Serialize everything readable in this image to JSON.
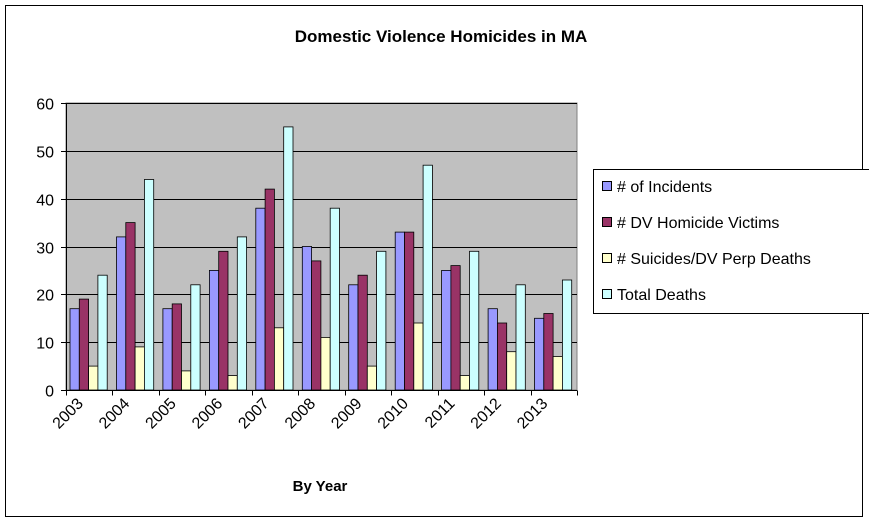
{
  "chart_data": {
    "type": "bar",
    "title": "Domestic Violence Homicides in MA",
    "xlabel": "By Year",
    "ylabel": "",
    "ylim": [
      0,
      60
    ],
    "yticks": [
      0,
      10,
      20,
      30,
      40,
      50,
      60
    ],
    "grid": true,
    "legend_position": "right",
    "categories": [
      "2003",
      "2004",
      "2005",
      "2006",
      "2007",
      "2008",
      "2009",
      "2010",
      "2011",
      "2012",
      "2013"
    ],
    "series": [
      {
        "name": "# of Incidents",
        "color": "#9999ff",
        "values": [
          17,
          32,
          17,
          25,
          38,
          30,
          22,
          33,
          25,
          17,
          15
        ]
      },
      {
        "name": "# DV Homicide Victims",
        "color": "#993366",
        "values": [
          19,
          35,
          18,
          29,
          42,
          27,
          24,
          33,
          26,
          14,
          16
        ]
      },
      {
        "name": "# Suicides/DV Perp Deaths",
        "color": "#ffffcc",
        "values": [
          5,
          9,
          4,
          3,
          13,
          11,
          5,
          14,
          3,
          8,
          7
        ]
      },
      {
        "name": "Total Deaths",
        "color": "#ccffff",
        "values": [
          24,
          44,
          22,
          32,
          55,
          38,
          29,
          47,
          29,
          22,
          23
        ]
      }
    ],
    "plot_background": "#c0c0c0"
  }
}
